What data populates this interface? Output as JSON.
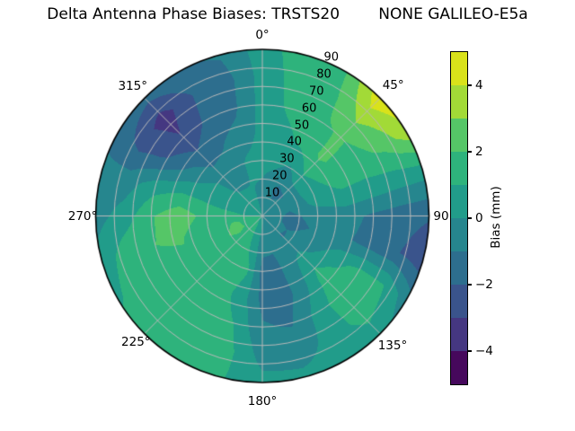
{
  "title": "Delta Antenna Phase Biases: TRSTS20        NONE GALILEO-E5a",
  "chart_data": {
    "type": "heatmap",
    "projection": "polar-contourf",
    "title": "Delta Antenna Phase Biases: TRSTS20        NONE GALILEO-E5a",
    "theta_direction": "clockwise-from-north",
    "theta_angles": [
      0,
      45,
      90,
      135,
      180,
      225,
      270,
      315
    ],
    "theta_labels": [
      "0°",
      "45°",
      "90",
      "135°",
      "180°",
      "225°",
      "270°",
      "315°"
    ],
    "r_tick_values": [
      10,
      20,
      30,
      40,
      50,
      60,
      70,
      80,
      90
    ],
    "r_tick_labels": [
      "10",
      "20",
      "30",
      "40",
      "50",
      "60",
      "70",
      "80",
      "90"
    ],
    "r_label_azimuth_deg": 23.5,
    "r_max": 90,
    "levels": [
      -5,
      -4,
      -3,
      -2,
      -1,
      0,
      1,
      2,
      3,
      4,
      5
    ],
    "band_colors": [
      "#46085c",
      "#453781",
      "#3a548c",
      "#2d6e8e",
      "#26868e",
      "#219c8a",
      "#2eb37c",
      "#55c667",
      "#a2da37",
      "#d9e21a"
    ],
    "grid_color": "#b9b9b9",
    "outline_color": "#000000",
    "field": {
      "azimuth_step_deg": 15,
      "radius_step": 15,
      "azimuths": [
        0,
        15,
        30,
        45,
        60,
        75,
        90,
        105,
        120,
        135,
        150,
        165,
        180,
        195,
        210,
        225,
        240,
        255,
        270,
        285,
        300,
        315,
        330,
        345
      ],
      "radii": [
        0,
        15,
        30,
        45,
        60,
        75,
        90
      ],
      "values_by_radius": [
        [
          -0.4,
          -0.4,
          -0.4,
          -0.4,
          -0.4,
          -0.4,
          -0.4,
          -0.2,
          -0.2,
          -0.2,
          -0.2,
          -0.2,
          0.4,
          0.4,
          0.9,
          0.9,
          0.9,
          0.9,
          0.6,
          0.0,
          0.0,
          0.0,
          0.0,
          0.0
        ],
        [
          -0.2,
          -0.8,
          -1.3,
          -1.1,
          -0.7,
          -0.9,
          -1.2,
          -1.3,
          -1.0,
          -1.1,
          -0.6,
          -0.8,
          -0.6,
          0.6,
          1.3,
          1.5,
          2.4,
          2.2,
          1.4,
          0.6,
          0.2,
          0.1,
          0.1,
          0.0
        ],
        [
          0.4,
          0.3,
          -0.1,
          0.9,
          0.6,
          0.4,
          -0.7,
          -0.9,
          -0.6,
          0.3,
          -0.4,
          -1.3,
          -1.4,
          1.1,
          1.6,
          1.3,
          1.4,
          1.1,
          1.6,
          0.9,
          0.3,
          -0.4,
          -0.6,
          0.2
        ],
        [
          0.3,
          0.7,
          1.3,
          2.2,
          1.6,
          0.8,
          -0.6,
          -0.8,
          0.6,
          1.4,
          -0.3,
          -1.5,
          -1.3,
          0.6,
          1.5,
          1.7,
          1.8,
          2.1,
          2.7,
          1.1,
          -0.6,
          -1.6,
          -1.1,
          -0.6
        ],
        [
          0.4,
          1.2,
          1.8,
          2.1,
          1.6,
          0.7,
          -1.2,
          -1.4,
          1.3,
          1.7,
          0.4,
          -1.1,
          -0.9,
          1.0,
          1.7,
          1.8,
          1.8,
          2.0,
          1.9,
          0.6,
          -1.9,
          -2.9,
          -1.8,
          -1.2
        ],
        [
          0.4,
          1.4,
          1.7,
          3.3,
          2.3,
          0.5,
          -1.6,
          -1.9,
          1.1,
          1.5,
          0.3,
          -0.4,
          -0.4,
          1.4,
          1.8,
          1.9,
          1.8,
          1.6,
          0.4,
          -0.5,
          -2.3,
          -3.5,
          -2.0,
          -1.4
        ],
        [
          0.5,
          1.6,
          1.9,
          4.7,
          3.6,
          0.4,
          -1.9,
          -2.7,
          -0.6,
          0.4,
          0.3,
          0.2,
          0.3,
          1.1,
          1.7,
          1.7,
          0.8,
          0.3,
          -0.4,
          -0.7,
          -1.3,
          -1.6,
          -1.1,
          -0.9
        ]
      ]
    },
    "colorbar": {
      "label": "Bias (mm)",
      "tick_values": [
        4,
        2,
        0,
        -2,
        -4
      ],
      "tick_labels": [
        "4",
        "2",
        "0",
        "−2",
        "−4"
      ],
      "range": [
        -5,
        5
      ]
    }
  }
}
